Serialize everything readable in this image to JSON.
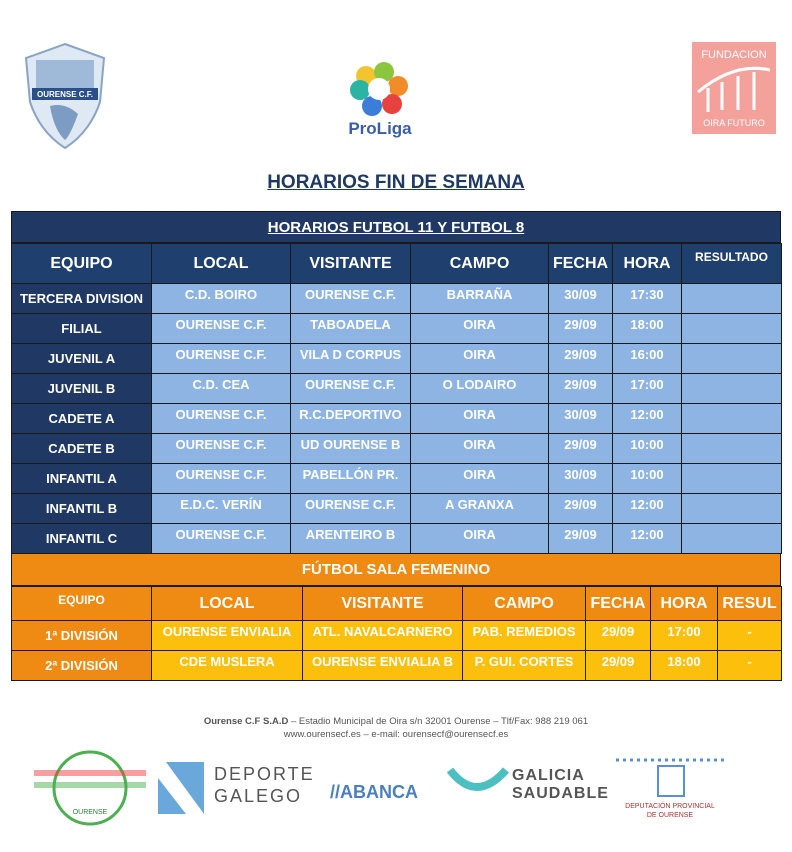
{
  "header": {
    "logos": {
      "ourense": "OURENSE C.F.",
      "proliga": "ProLiga",
      "fundacion_top": "FUNDACION",
      "fundacion_bottom": "OIRA FUTURO"
    },
    "title": "HORARIOS FIN DE SEMANA"
  },
  "table1": {
    "title": "HORARIOS FUTBOL 11 Y FUTBOL 8",
    "columns": [
      "EQUIPO",
      "LOCAL",
      "VISITANTE",
      "CAMPO",
      "FECHA",
      "HORA",
      "RESULTADO"
    ],
    "rows": [
      [
        "TERCERA DIVISION",
        "C.D. BOIRO",
        "OURENSE C.F.",
        "BARRAÑA",
        "30/09",
        "17:30"
      ],
      [
        "FILIAL",
        "OURENSE C.F.",
        "TABOADELA",
        "OIRA",
        "29/09",
        "18:00"
      ],
      [
        "JUVENIL A",
        "OURENSE C.F.",
        "VILA D CORPUS",
        "OIRA",
        "29/09",
        "16:00"
      ],
      [
        "JUVENIL B",
        "C.D. CEA",
        "OURENSE C.F.",
        "O LODAIRO",
        "29/09",
        "17:00"
      ],
      [
        "CADETE A",
        "OURENSE C.F.",
        "R.C.DEPORTIVO",
        "OIRA",
        "30/09",
        "12:00"
      ],
      [
        "CADETE B",
        "OURENSE C.F.",
        "UD OURENSE B",
        "OIRA",
        "29/09",
        "10:00"
      ],
      [
        "INFANTIL A",
        "OURENSE C.F.",
        "PABELLÓN PR.",
        "OIRA",
        "30/09",
        "10:00"
      ],
      [
        "INFANTIL B",
        "E.D.C. VERÍN",
        "OURENSE C.F.",
        "A GRANXA",
        "29/09",
        "12:00"
      ],
      [
        "INFANTIL C",
        "OURENSE C.F.",
        "ARENTEIRO B",
        "OIRA",
        "29/09",
        "12:00"
      ]
    ]
  },
  "table2": {
    "title": "FÚTBOL SALA FEMENINO",
    "columns": [
      "EQUIPO",
      "LOCAL",
      "VISITANTE",
      "CAMPO",
      "FECHA",
      "HORA",
      "RESUL"
    ],
    "rows": [
      [
        "1ª DIVISIÓN",
        "OURENSE ENVIALIA",
        "ATL. NAVALCARNERO",
        "PAB. REMEDIOS",
        "29/09",
        "17:00",
        "-"
      ],
      [
        "2ª DIVISIÓN",
        "CDE MUSLERA",
        "OURENSE ENVIALIA B",
        "P. GUI. CORTES",
        "29/09",
        "18:00",
        "-"
      ]
    ]
  },
  "footer": {
    "line1_bold": "Ourense C.F S.A.D",
    "line1": " – Estadio Municipal de Oira s/n 32001 Ourense – Tlf/Fax: 988 219 061",
    "line2": "www.ourensecf.es – e-mail: ourensecf@ourensecf.es"
  },
  "sponsors": {
    "concello": "OURENSE",
    "deporte1": "DEPORTE",
    "deporte2": "GALEGO",
    "abanca": "//ABANCA",
    "galicia1": "GALICIA",
    "galicia2": "SAUDABLE",
    "deputacion1": "DEPUTACIÓN PROVINCIAL",
    "deputacion2": "DE OURENSE"
  }
}
